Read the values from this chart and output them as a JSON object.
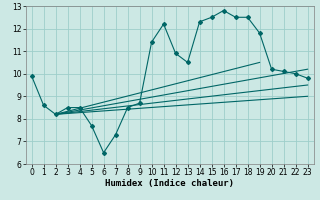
{
  "xlabel": "Humidex (Indice chaleur)",
  "xlim": [
    -0.5,
    23.5
  ],
  "ylim": [
    6,
    13
  ],
  "yticks": [
    6,
    7,
    8,
    9,
    10,
    11,
    12,
    13
  ],
  "xticks": [
    0,
    1,
    2,
    3,
    4,
    5,
    6,
    7,
    8,
    9,
    10,
    11,
    12,
    13,
    14,
    15,
    16,
    17,
    18,
    19,
    20,
    21,
    22,
    23
  ],
  "bg_color": "#cce8e4",
  "grid_color": "#9ececa",
  "line_color": "#006666",
  "main_x": [
    0,
    1,
    2,
    3,
    4,
    5,
    6,
    7,
    8,
    9,
    10,
    11,
    12,
    13,
    14,
    15,
    16,
    17,
    18,
    19,
    20,
    21,
    22,
    23
  ],
  "main_y": [
    9.9,
    8.6,
    8.2,
    8.5,
    8.5,
    7.7,
    6.5,
    7.3,
    8.5,
    8.7,
    11.4,
    12.2,
    10.9,
    10.5,
    12.3,
    12.5,
    12.8,
    12.5,
    12.5,
    11.8,
    10.2,
    10.1,
    10.0,
    9.8
  ],
  "fan_lines": [
    {
      "x": [
        2,
        23
      ],
      "y": [
        8.2,
        9.0
      ]
    },
    {
      "x": [
        2,
        23
      ],
      "y": [
        8.2,
        9.5
      ]
    },
    {
      "x": [
        2,
        23
      ],
      "y": [
        8.2,
        10.2
      ]
    },
    {
      "x": [
        2,
        19
      ],
      "y": [
        8.2,
        10.5
      ]
    }
  ],
  "tick_fontsize": 5.5,
  "xlabel_fontsize": 6.5
}
